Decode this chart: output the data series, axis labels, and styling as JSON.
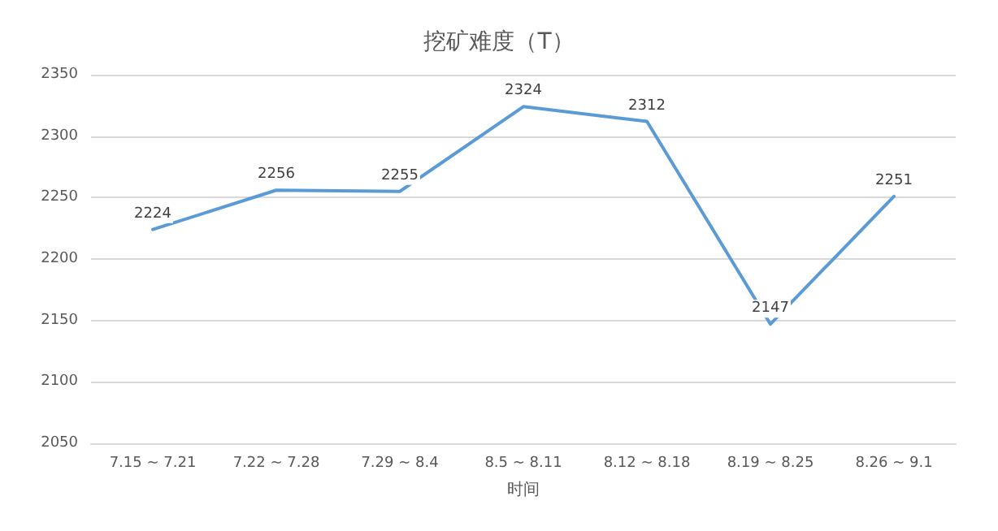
{
  "chart_data": {
    "type": "line",
    "title": "挖矿难度（T）",
    "xlabel": "时间",
    "categories": [
      "7.15 ~ 7.21",
      "7.22 ~ 7.28",
      "7.29 ~ 8.4",
      "8.5 ~ 8.11",
      "8.12 ~ 8.18",
      "8.19 ~ 8.25",
      "8.26 ~ 9.1"
    ],
    "series": [
      {
        "color": "#5b9bd5",
        "values": [
          2224,
          2256,
          2255,
          2324,
          2312,
          2147,
          2251
        ]
      }
    ],
    "ylim": [
      2050,
      2350
    ],
    "yticks": [
      2050,
      2100,
      2150,
      2200,
      2250,
      2300,
      2350
    ],
    "grid": "y",
    "data_labels": true,
    "marker": "none",
    "line_style": "solid"
  }
}
